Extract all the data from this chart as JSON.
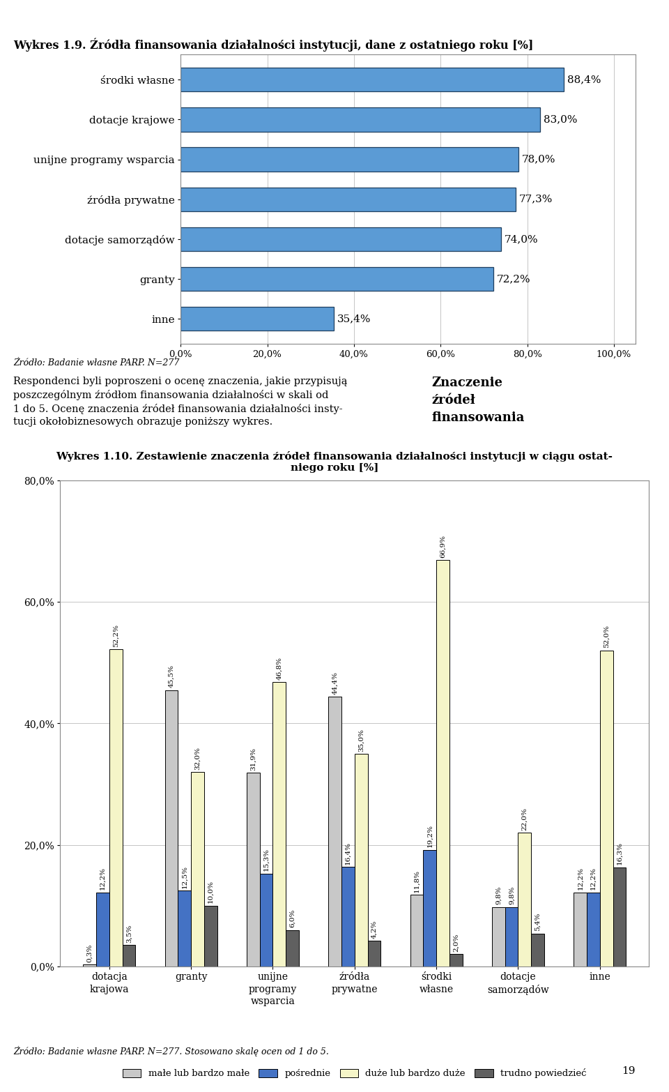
{
  "chart1": {
    "title": "Wykres 1.9. Źródła finansowania działalności instytucji, dane z ostatniego roku [%]",
    "categories": [
      "środki własne",
      "dotacje krajowe",
      "unijne programy wsparcia",
      "źródła prywatne",
      "dotacje samorządów",
      "granty",
      "inne"
    ],
    "values": [
      88.4,
      83.0,
      78.0,
      77.3,
      74.0,
      72.2,
      35.4
    ],
    "bar_color": "#5B9BD5",
    "bar_edge_color": "#1F3F5F",
    "xlim": [
      0,
      100
    ],
    "xticks": [
      0,
      20,
      40,
      60,
      80,
      100
    ],
    "xticklabels": [
      "0,0%",
      "20,0%",
      "40,0%",
      "60,0%",
      "80,0%",
      "100,0%"
    ],
    "source_text": "Źródło: Badanie własne PARP. N=277"
  },
  "middle_text": {
    "left": "Respondenci byli poproszeni o ocenę znaczenia, jakie przypisują\nposzczególnym źródłom finansowania działalności w skali od\n1 do 5. Ocenę znaczenia źródeł finansowania działalności insty-\ntucji okołobiznesowych obrazuje poniższy wykres.",
    "right": "Znaczenie\nźródeł\nfinansowania"
  },
  "chart2": {
    "title_line1": "Wykres 1.10. Zestawienie znaczenia źródeł finansowania działalności instytucji w ciągu ostat-",
    "title_line2": "niego roku [%]",
    "categories": [
      "dotacja\nkrajowa",
      "granty",
      "unijne\nprogramy\nwsparcia",
      "źródła\nprywatne",
      "środki\nwłasne",
      "dotacje\nsamorządów",
      "inne"
    ],
    "series": {
      "małe lub bardzo małe": [
        0.3,
        45.5,
        31.9,
        44.4,
        11.8,
        9.8,
        12.2
      ],
      "pośrednie": [
        12.2,
        12.5,
        15.3,
        16.4,
        19.2,
        9.8,
        12.2
      ],
      "duże lub bardzo duże": [
        52.2,
        32.0,
        46.8,
        35.0,
        66.9,
        22.0,
        52.0
      ],
      "trudno powiedzieć": [
        3.5,
        10.0,
        6.0,
        4.2,
        2.0,
        5.4,
        16.3
      ]
    },
    "series_order": [
      "małe lub bardzo małe",
      "pośrednie",
      "duże lub bardzo duże",
      "trudno powiedzieć"
    ],
    "colors": {
      "małe lub bardzo małe": "#C8C8C8",
      "pośrednie": "#4472C4",
      "duże lub bardzo duże": "#F5F5C8",
      "trudno powiedzieć": "#606060"
    },
    "edge_color": "#000000",
    "ylim": [
      0,
      80
    ],
    "yticks": [
      0,
      20,
      40,
      60,
      80
    ],
    "yticklabels": [
      "0,0%",
      "20,0%",
      "40,0%",
      "60,0%",
      "80,0%"
    ],
    "source_text": "Źródło: Badanie własne PARP. N=277. Stosowano skalę ocen od 1 do 5.",
    "bar_labels": {
      "małe lub bardzo małe": [
        "0,3%",
        "45,5%",
        "31,9%",
        "44,4%",
        "11,8%",
        "9,8%",
        "12,2%"
      ],
      "pośrednie": [
        "12,2%",
        "12,5%",
        "15,3%",
        "16,4%",
        "19,2%",
        "9,8%",
        "12,2%"
      ],
      "duże lub bardzo duże": [
        "52,2%",
        "32,0%",
        "46,8%",
        "35,0%",
        "66,9%",
        "22,0%",
        "52,0%"
      ],
      "trudno powiedzieć": [
        "3,5%",
        "10,0%",
        "6,0%",
        "4,2%",
        "2,0%",
        "5,4%",
        "16,3%"
      ]
    }
  },
  "page_number": "19"
}
